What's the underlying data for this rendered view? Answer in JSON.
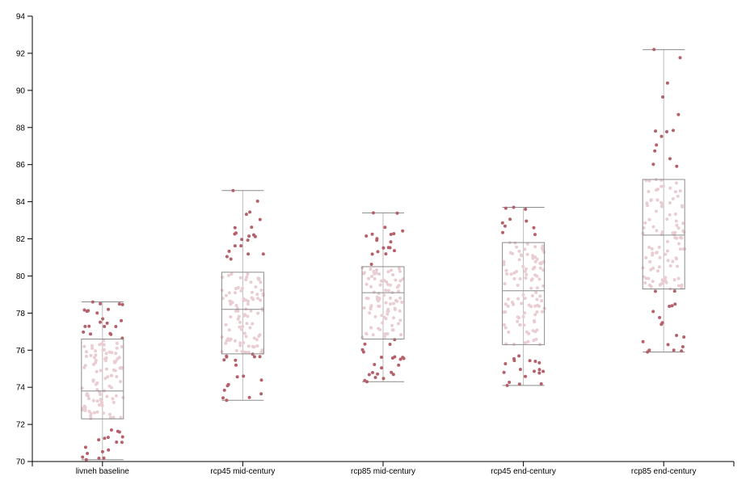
{
  "chart_data": {
    "type": "box",
    "categories": [
      "livneh baseline",
      "rcp45 mid-century",
      "rcp85 mid-century",
      "rcp45 end-century",
      "rcp85 end-century"
    ],
    "ylim": [
      70,
      94
    ],
    "yticks": [
      70,
      72,
      74,
      76,
      78,
      80,
      82,
      84,
      86,
      88,
      90,
      92,
      94
    ],
    "title": "",
    "xlabel": "",
    "ylabel": "",
    "grid": false,
    "boxes": [
      {
        "category": "livneh baseline",
        "min": 70.1,
        "q1": 72.3,
        "median": 73.8,
        "q3": 76.6,
        "max": 78.6
      },
      {
        "category": "rcp45 mid-century",
        "min": 73.3,
        "q1": 75.8,
        "median": 78.2,
        "q3": 80.2,
        "max": 84.6
      },
      {
        "category": "rcp85 mid-century",
        "min": 74.3,
        "q1": 76.6,
        "median": 79.1,
        "q3": 80.5,
        "max": 83.4
      },
      {
        "category": "rcp45 end-century",
        "min": 74.1,
        "q1": 76.3,
        "median": 79.2,
        "q3": 81.8,
        "max": 83.7
      },
      {
        "category": "rcp85 end-century",
        "min": 75.9,
        "q1": 79.3,
        "median": 82.2,
        "q3": 85.2,
        "max": 92.2
      }
    ],
    "colors": {
      "outlier_point": "#b5616b",
      "inner_point": "#e9cdd2",
      "box_stroke": "#8c8c8c",
      "whisker": "#bdbdbd",
      "axis": "#000000"
    }
  }
}
